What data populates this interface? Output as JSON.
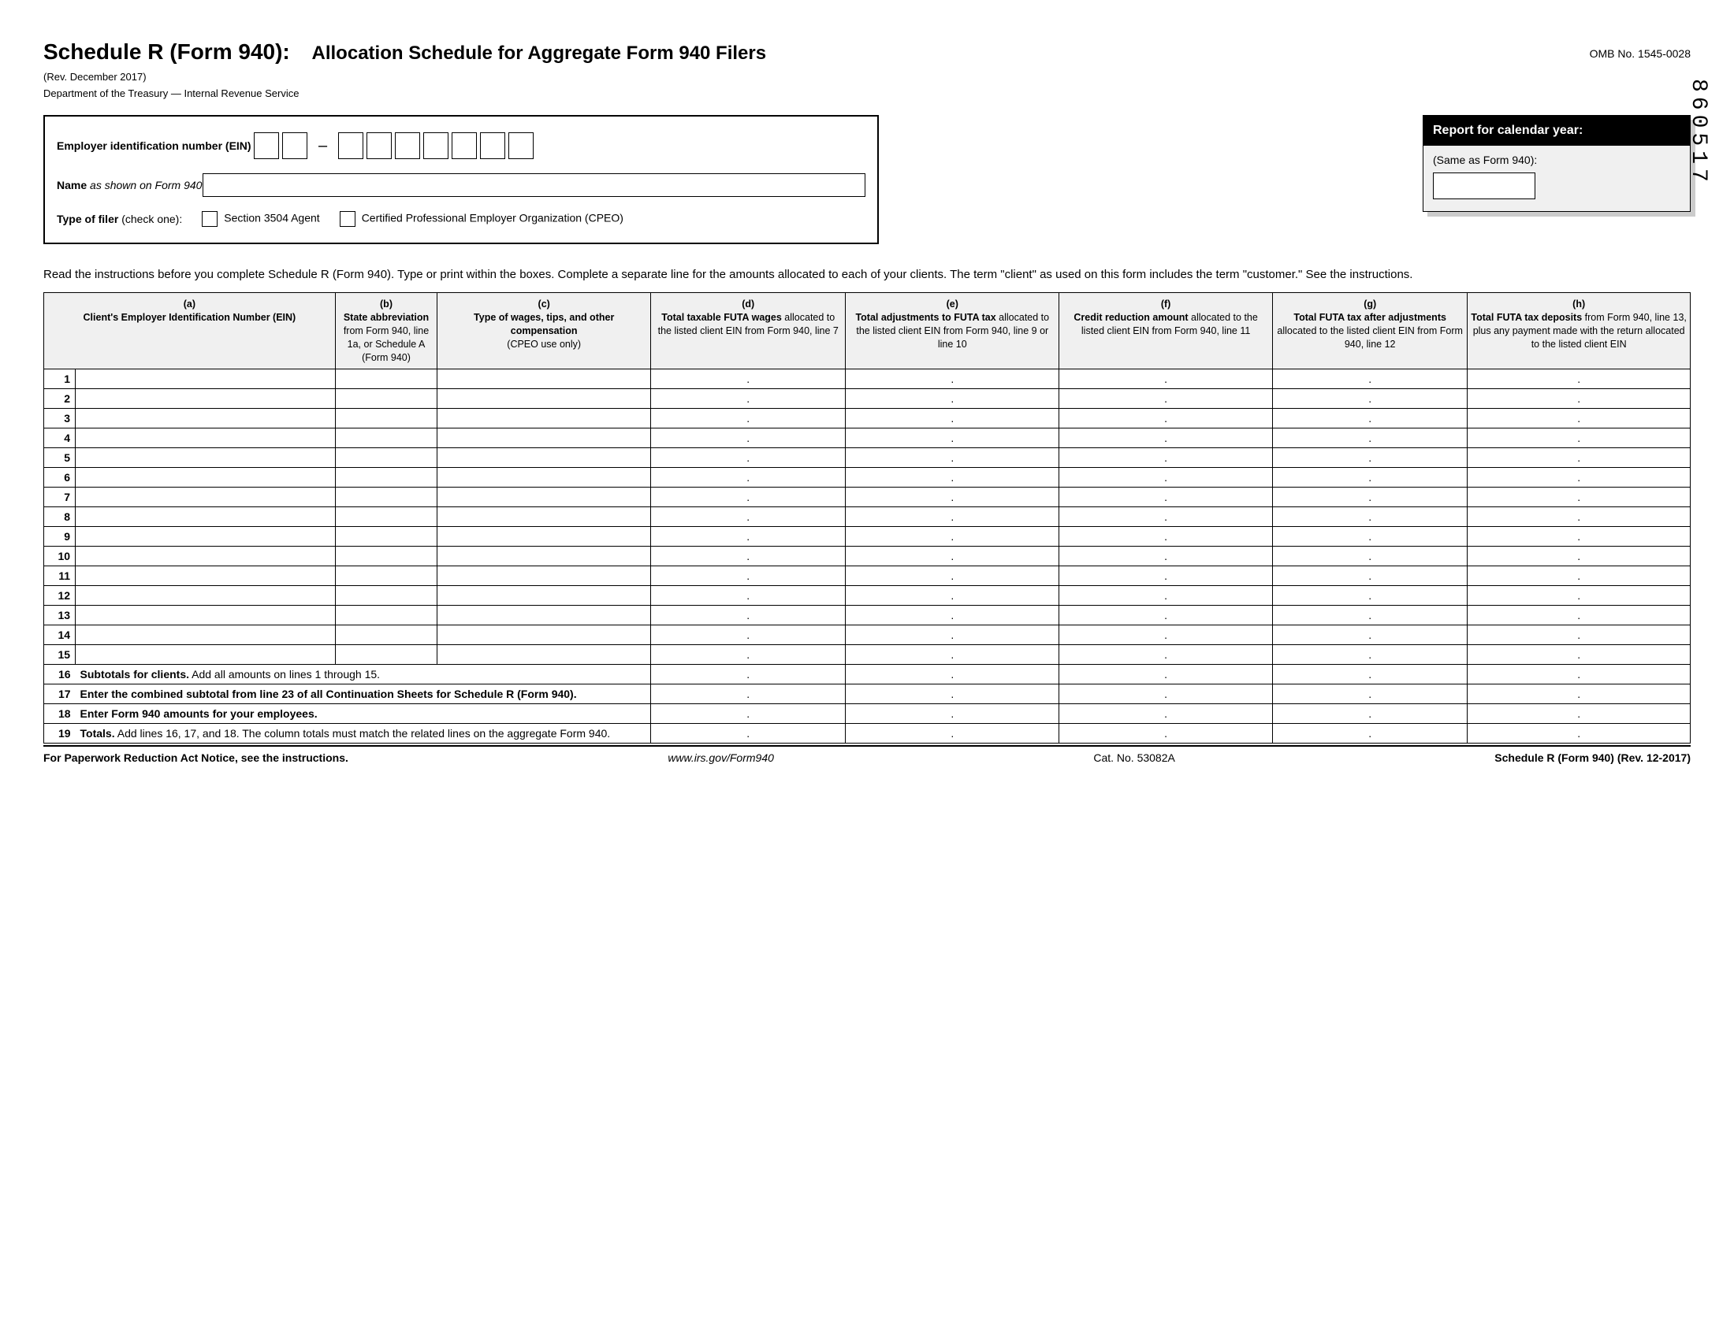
{
  "header": {
    "title_main": "Schedule R (Form 940):",
    "title_sub": "Allocation Schedule for Aggregate Form 940 Filers",
    "omb": "OMB No. 1545-0028",
    "revision": "(Rev. December 2017)",
    "department": "Department of the Treasury — Internal Revenue Service",
    "side_code": "860517"
  },
  "ein_box": {
    "ein_label": "Employer identification number (EIN)",
    "ein_dash": "–",
    "name_label_bold": "Name",
    "name_label_rest": " as shown on Form 940",
    "filer_label_bold": "Type of filer",
    "filer_label_rest": " (check one):",
    "option1": "Section 3504 Agent",
    "option2": "Certified Professional Employer Organization (CPEO)"
  },
  "report_box": {
    "header": "Report for calendar year:",
    "sub": "(Same as Form 940):"
  },
  "instructions": "Read the instructions before you complete Schedule R (Form 940). Type or print within the boxes. Complete a separate line for the amounts allocated to each of your clients. The term \"client\" as used on this form includes the term \"customer.\" See the instructions.",
  "columns": {
    "a": {
      "letter": "(a)",
      "bold": "Client's Employer Identification Number (EIN)",
      "rest": ""
    },
    "b": {
      "letter": "(b)",
      "bold": "State abbreviation",
      "rest": " from Form 940, line 1a, or Schedule A (Form 940)"
    },
    "c": {
      "letter": "(c)",
      "bold": "Type of wages, tips, and other compensation",
      "rest": " (CPEO use only)"
    },
    "d": {
      "letter": "(d)",
      "bold": "Total taxable FUTA wages",
      "rest": " allocated to the listed client EIN from Form 940, line 7"
    },
    "e": {
      "letter": "(e)",
      "bold": "Total adjustments to FUTA tax",
      "rest": " allocated to the listed client EIN from Form 940, line 9 or line 10"
    },
    "f": {
      "letter": "(f)",
      "bold": "Credit reduction amount",
      "rest": " allocated to the listed client EIN from Form 940, line 11"
    },
    "g": {
      "letter": "(g)",
      "bold": "Total FUTA tax after adjustments",
      "rest": " allocated to the listed client EIN from Form 940, line 12"
    },
    "h": {
      "letter": "(h)",
      "bold": "Total FUTA tax deposits",
      "rest": " from Form 940, line 13, plus any payment made with the return allocated to the listed client EIN"
    }
  },
  "data_rows": 15,
  "summary": {
    "r16": {
      "num": "16",
      "bold": "Subtotals for clients.",
      "rest": " Add all amounts on lines 1 through 15."
    },
    "r17": {
      "num": "17",
      "bold": "Enter the combined subtotal from line 23 of all Continuation Sheets for Schedule R (Form 940).",
      "rest": ""
    },
    "r18": {
      "num": "18",
      "bold": "Enter Form 940 amounts for your employees.",
      "rest": ""
    },
    "r19": {
      "num": "19",
      "bold": "Totals.",
      "rest": " Add lines 16, 17, and 18. The column totals must match the related lines on the aggregate Form 940."
    }
  },
  "footer": {
    "left": "For Paperwork Reduction Act Notice, see the instructions.",
    "center": "www.irs.gov/Form940",
    "cat": "Cat. No. 53082A",
    "right": "Schedule R (Form 940) (Rev. 12-2017)"
  },
  "style": {
    "shaded_bg": "#f0f0f0",
    "border_color": "#000000",
    "text_color": "#000000"
  }
}
